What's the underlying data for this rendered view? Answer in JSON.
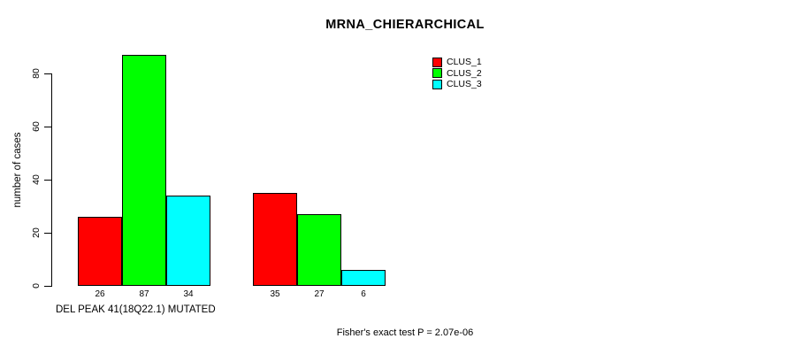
{
  "chart_data": {
    "type": "bar",
    "title": "MRNA_CHIERARCHICAL",
    "ylabel": "number of cases",
    "xlabel": "DEL PEAK 41(18Q22.1) MUTATED",
    "footnote": "Fisher's exact test P = 2.07e-06",
    "yticks": [
      0,
      20,
      40,
      60,
      80
    ],
    "ylim": [
      0,
      80
    ],
    "grid": false,
    "legend_position": "top-right",
    "show_bar_values": true,
    "series": [
      {
        "name": "CLUS_1",
        "color": "#ff0000",
        "values": [
          26,
          35
        ]
      },
      {
        "name": "CLUS_2",
        "color": "#00ff00",
        "values": [
          87,
          27
        ]
      },
      {
        "name": "CLUS_3",
        "color": "#00ffff",
        "values": [
          34,
          6
        ]
      }
    ],
    "bar_value_labels": [
      [
        26,
        87,
        34
      ],
      [
        35,
        27,
        6
      ]
    ],
    "colors": {
      "bar_border": "#000000",
      "axis": "#000000",
      "text": "#000000",
      "background": "#ffffff"
    }
  }
}
